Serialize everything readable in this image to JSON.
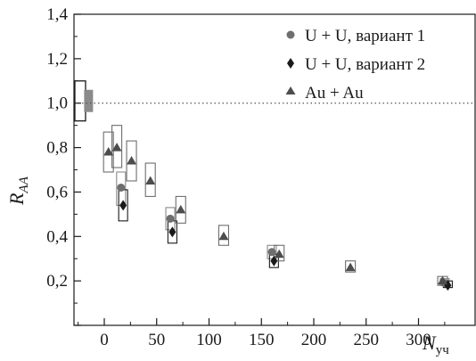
{
  "chart_data": {
    "type": "scatter",
    "title": "",
    "xlabel": {
      "main": "N",
      "sub": "уч"
    },
    "ylabel": {
      "main": "R",
      "sub": "AA"
    },
    "xlim": [
      -30,
      335
    ],
    "ylim": [
      0,
      1.4
    ],
    "x_ticks": [
      0,
      50,
      100,
      150,
      200,
      250,
      300
    ],
    "y_ticks": [
      0,
      0.2,
      0.4,
      0.6,
      0.8,
      1.0,
      1.2,
      1.4
    ],
    "x_tick_labels": [
      "0",
      "50",
      "100",
      "150",
      "200",
      "250",
      "300"
    ],
    "y_tick_labels": [
      "",
      "0,2",
      "0,4",
      "0,6",
      "0,8",
      "1,0",
      "1,2",
      "1,4"
    ],
    "reference_line": {
      "y": 1.0,
      "style": "dotted"
    },
    "grid": false,
    "legend": {
      "position": "top-right"
    },
    "normalization_boxes": [
      {
        "x": -23,
        "low": 0.92,
        "high": 1.1,
        "filled": false
      },
      {
        "x": -15,
        "low": 0.96,
        "high": 1.06,
        "filled": true
      }
    ],
    "series": [
      {
        "name": "U + U, вариант 1",
        "marker": "circle",
        "color": "#6e6e6e",
        "points": [
          {
            "x": 16,
            "y": 0.62,
            "low": 0.54,
            "high": 0.69
          },
          {
            "x": 63,
            "y": 0.48,
            "low": 0.43,
            "high": 0.53
          },
          {
            "x": 160,
            "y": 0.33,
            "low": 0.3,
            "high": 0.36
          },
          {
            "x": 325,
            "y": 0.19,
            "low": 0.18,
            "high": 0.21
          }
        ]
      },
      {
        "name": "U + U, вариант 2",
        "marker": "diamond",
        "color": "#1a1a1a",
        "points": [
          {
            "x": 18,
            "y": 0.54,
            "low": 0.47,
            "high": 0.61
          },
          {
            "x": 65,
            "y": 0.42,
            "low": 0.37,
            "high": 0.47
          },
          {
            "x": 162,
            "y": 0.29,
            "low": 0.26,
            "high": 0.32
          },
          {
            "x": 328,
            "y": 0.18,
            "low": 0.17,
            "high": 0.2
          }
        ]
      },
      {
        "name": "Au + Au",
        "marker": "triangle",
        "color": "#4d4d4d",
        "points": [
          {
            "x": 4,
            "y": 0.78,
            "low": 0.69,
            "high": 0.87
          },
          {
            "x": 12,
            "y": 0.8,
            "low": 0.71,
            "high": 0.9
          },
          {
            "x": 26,
            "y": 0.74,
            "low": 0.65,
            "high": 0.83
          },
          {
            "x": 44,
            "y": 0.65,
            "low": 0.58,
            "high": 0.73
          },
          {
            "x": 73,
            "y": 0.52,
            "low": 0.46,
            "high": 0.58
          },
          {
            "x": 114,
            "y": 0.4,
            "low": 0.36,
            "high": 0.45
          },
          {
            "x": 167,
            "y": 0.32,
            "low": 0.29,
            "high": 0.36
          },
          {
            "x": 235,
            "y": 0.26,
            "low": 0.24,
            "high": 0.29
          },
          {
            "x": 323,
            "y": 0.2,
            "low": 0.18,
            "high": 0.22
          }
        ]
      }
    ]
  }
}
